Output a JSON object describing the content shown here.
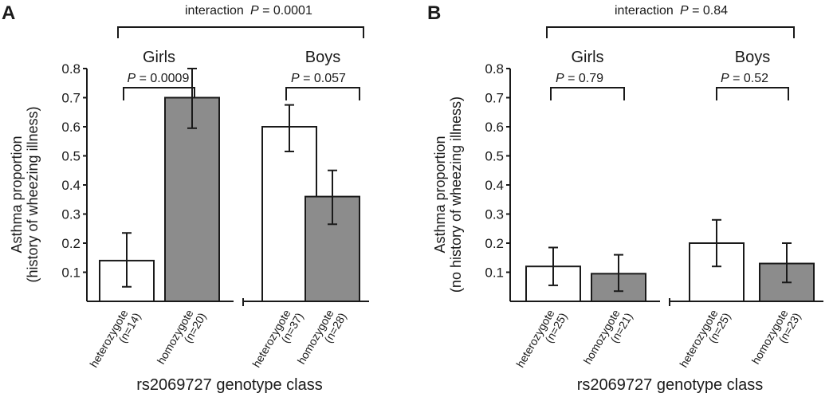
{
  "chart_data": [
    {
      "type": "bar",
      "panel_label": "A",
      "interaction_label": "interaction",
      "interaction_p": "P = 0.0001",
      "ylabel_line1": "Asthma proportion",
      "ylabel_line2": "(history of wheezing illness)",
      "xlabel": "rs2069727 genotype class",
      "ylim": [
        0,
        0.8
      ],
      "yticks": [
        "0.1",
        "0.2",
        "0.3",
        "0.4",
        "0.5",
        "0.6",
        "0.7",
        "0.8"
      ],
      "groups": [
        {
          "name": "Girls",
          "p_label": "P = 0.0009",
          "bars": [
            {
              "category": "heterozygote",
              "n": "(n=14)",
              "value": 0.14,
              "err_low": 0.05,
              "err_high": 0.235,
              "fill": "#ffffff"
            },
            {
              "category": "homozygote",
              "n": "(n=20)",
              "value": 0.7,
              "err_low": 0.595,
              "err_high": 0.8,
              "fill": "#8c8c8c"
            }
          ]
        },
        {
          "name": "Boys",
          "p_label": "P = 0.057",
          "bars": [
            {
              "category": "heterozygote",
              "n": "(n=37)",
              "value": 0.6,
              "err_low": 0.515,
              "err_high": 0.675,
              "fill": "#ffffff"
            },
            {
              "category": "homozygote",
              "n": "(n=28)",
              "value": 0.36,
              "err_low": 0.265,
              "err_high": 0.45,
              "fill": "#8c8c8c"
            }
          ]
        }
      ]
    },
    {
      "type": "bar",
      "panel_label": "B",
      "interaction_label": "interaction",
      "interaction_p": "P = 0.84",
      "ylabel_line1": "Asthma proportion",
      "ylabel_line2": "(no history of wheezing illness)",
      "xlabel": "rs2069727 genotype class",
      "ylim": [
        0,
        0.8
      ],
      "yticks": [
        "0.1",
        "0.2",
        "0.3",
        "0.4",
        "0.5",
        "0.6",
        "0.7",
        "0.8"
      ],
      "groups": [
        {
          "name": "Girls",
          "p_label": "P = 0.79",
          "bars": [
            {
              "category": "heterozygote",
              "n": "(n=25)",
              "value": 0.12,
              "err_low": 0.055,
              "err_high": 0.185,
              "fill": "#ffffff"
            },
            {
              "category": "homozygote",
              "n": "(n=21)",
              "value": 0.095,
              "err_low": 0.035,
              "err_high": 0.16,
              "fill": "#8c8c8c"
            }
          ]
        },
        {
          "name": "Boys",
          "p_label": "P = 0.52",
          "bars": [
            {
              "category": "heterozygote",
              "n": "(n=25)",
              "value": 0.2,
              "err_low": 0.12,
              "err_high": 0.28,
              "fill": "#ffffff"
            },
            {
              "category": "homozygote",
              "n": "(n=23)",
              "value": 0.13,
              "err_low": 0.065,
              "err_high": 0.2,
              "fill": "#8c8c8c"
            }
          ]
        }
      ]
    }
  ]
}
